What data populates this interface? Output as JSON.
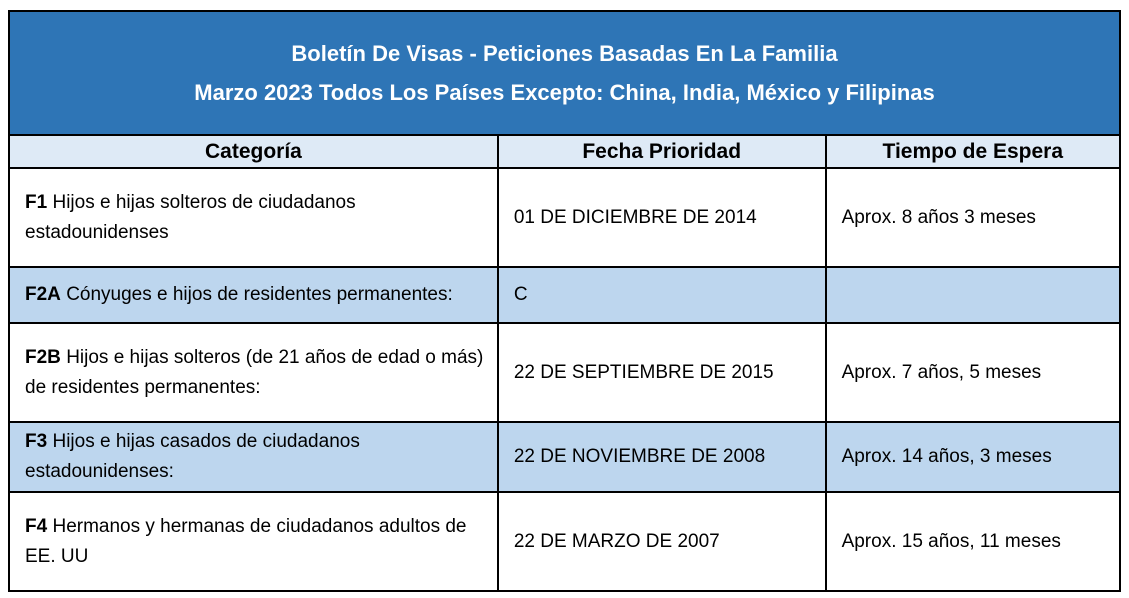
{
  "title": {
    "line1": "Boletín De Visas - Peticiones Basadas En La Familia",
    "line2": "Marzo 2023 Todos Los Países Excepto: China, India, México y Filipinas"
  },
  "colors": {
    "title_bg": "#2E75B6",
    "title_text": "#FFFFFF",
    "header_row_bg": "#DEEAF6",
    "highlight_row_bg": "#BDD6EE",
    "border": "#000000"
  },
  "table": {
    "headers": [
      "Categoría",
      "Fecha Prioridad",
      "Tiempo de Espera"
    ],
    "rows": [
      {
        "code": "F1",
        "category": "Hijos e hijas solteros de ciudadanos estadounidenses",
        "priority_date": "01 DE DICIEMBRE DE 2014",
        "wait_time": "Aprox. 8 años 3 meses",
        "highlighted": false
      },
      {
        "code": "F2A",
        "category": "Cónyuges e hijos de residentes permanentes:",
        "priority_date": "C",
        "wait_time": "",
        "highlighted": true
      },
      {
        "code": "F2B",
        "category": "Hijos e hijas solteros (de 21 años de edad o más) de residentes permanentes:",
        "priority_date": "22 DE SEPTIEMBRE DE 2015",
        "wait_time": "Aprox. 7 años, 5 meses",
        "highlighted": false
      },
      {
        "code": "F3",
        "category": "Hijos e hijas casados de ciudadanos estadounidenses:",
        "priority_date": "22 DE NOVIEMBRE DE 2008",
        "wait_time": "Aprox. 14 años, 3 meses",
        "highlighted": true
      },
      {
        "code": "F4",
        "category": "Hermanos y hermanas de ciudadanos adultos de EE. UU",
        "priority_date": "22 DE MARZO DE 2007",
        "wait_time": "Aprox. 15 años, 11 meses",
        "highlighted": false
      }
    ]
  }
}
